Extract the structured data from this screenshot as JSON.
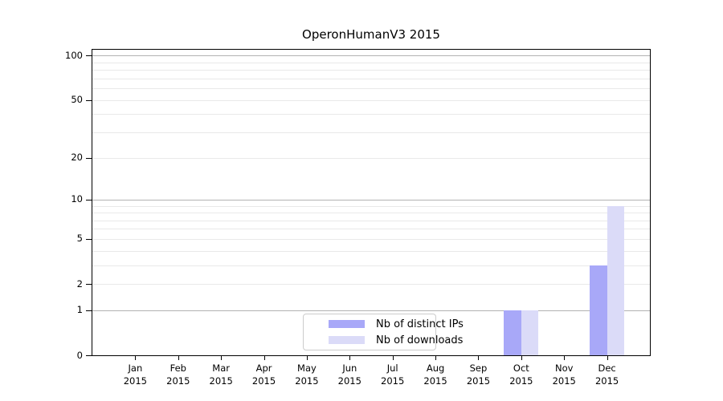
{
  "chart_data": {
    "type": "bar",
    "title": "OperonHumanV3 2015",
    "categories": [
      "Jan",
      "Feb",
      "Mar",
      "Apr",
      "May",
      "Jun",
      "Jul",
      "Aug",
      "Sep",
      "Oct",
      "Nov",
      "Dec"
    ],
    "category_year": "2015",
    "series": [
      {
        "name": "Nb of distinct IPs",
        "color": "#a8a8f8",
        "values": [
          0,
          0,
          0,
          0,
          0,
          0,
          0,
          0,
          0,
          1,
          0,
          3
        ]
      },
      {
        "name": "Nb of downloads",
        "color": "#dbdbf8",
        "values": [
          0,
          0,
          0,
          0,
          0,
          0,
          0,
          0,
          0,
          1,
          0,
          9
        ]
      }
    ],
    "xlabel": "",
    "ylabel": "",
    "yscale": "log1p",
    "ylim": [
      0,
      112
    ],
    "ytick_values": [
      0,
      1,
      2,
      5,
      10,
      20,
      50,
      100
    ],
    "ytick_labels": [
      "0",
      "1",
      "2",
      "5",
      "10",
      "20",
      "50",
      "100"
    ],
    "major_grid_values": [
      1,
      10,
      100
    ],
    "minor_grid_values": [
      2,
      3,
      4,
      5,
      6,
      7,
      8,
      9,
      20,
      30,
      40,
      50,
      60,
      70,
      80,
      90
    ],
    "grid": "on",
    "legend_position": "lower-center-inside",
    "colors": {
      "major_grid": "#b2b2b2",
      "minor_grid": "#e9e9e9",
      "spine": "#000000",
      "background": "#ffffff"
    }
  }
}
